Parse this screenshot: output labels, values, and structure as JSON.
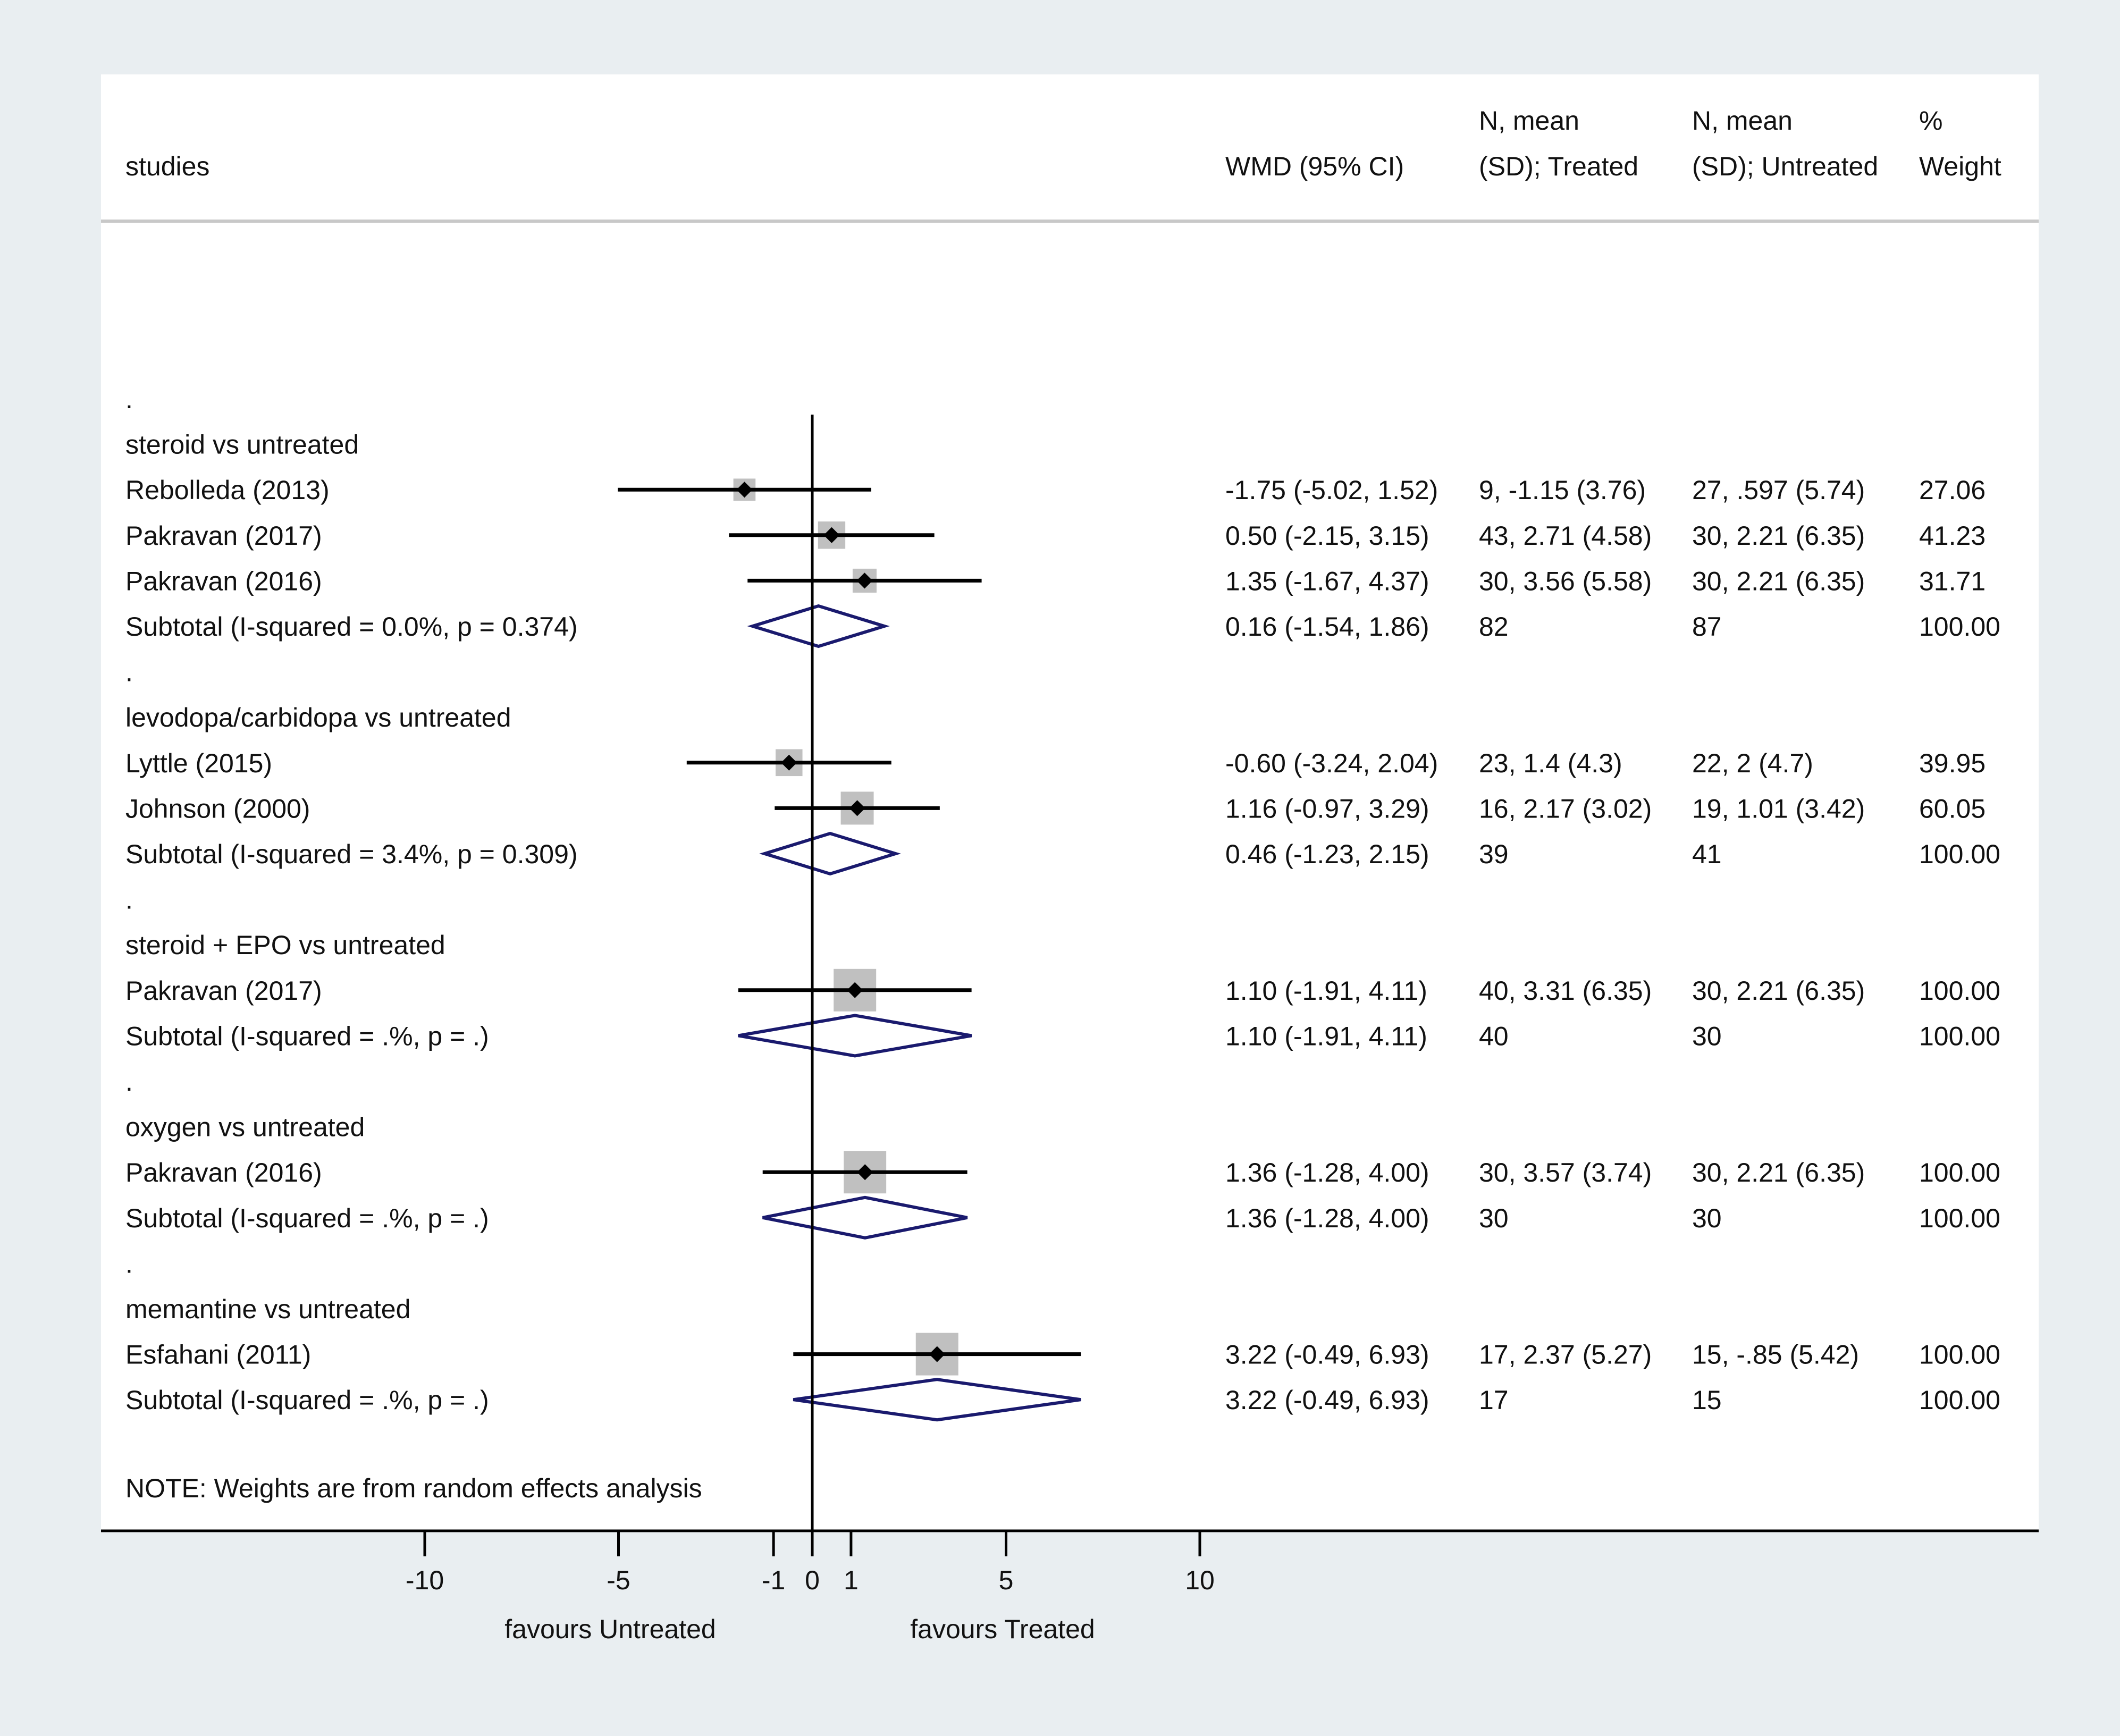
{
  "chart_data": {
    "type": "forest",
    "headers": {
      "studies": "studies",
      "wmd": "WMD (95% CI)",
      "treated_line1": "N, mean",
      "treated_line2": "(SD); Treated",
      "untreated_line1": "N, mean",
      "untreated_line2": "(SD); Untreated",
      "weight_line1": "%",
      "weight_line2": "Weight"
    },
    "rows": [
      {
        "kind": "dot",
        "label": "."
      },
      {
        "kind": "group",
        "label": "steroid vs untreated"
      },
      {
        "kind": "study",
        "label": "Rebolleda (2013)",
        "est": -1.75,
        "lo": -5.02,
        "hi": 1.52,
        "w": 27.06,
        "wmd": "-1.75 (-5.02, 1.52)",
        "treated": "9, -1.15 (3.76)",
        "untreated": "27, .597 (5.74)",
        "weight": "27.06"
      },
      {
        "kind": "study",
        "label": "Pakravan (2017)",
        "est": 0.5,
        "lo": -2.15,
        "hi": 3.15,
        "w": 41.23,
        "wmd": "0.50 (-2.15, 3.15)",
        "treated": "43, 2.71 (4.58)",
        "untreated": "30, 2.21 (6.35)",
        "weight": "41.23"
      },
      {
        "kind": "study",
        "label": "Pakravan (2016)",
        "est": 1.35,
        "lo": -1.67,
        "hi": 4.37,
        "w": 31.71,
        "wmd": "1.35 (-1.67, 4.37)",
        "treated": "30, 3.56 (5.58)",
        "untreated": "30, 2.21 (6.35)",
        "weight": "31.71"
      },
      {
        "kind": "subtotal",
        "label": "Subtotal  (I-squared = 0.0%, p = 0.374)",
        "est": 0.16,
        "lo": -1.54,
        "hi": 1.86,
        "wmd": "0.16 (-1.54, 1.86)",
        "treated": "82",
        "untreated": "87",
        "weight": "100.00"
      },
      {
        "kind": "dot",
        "label": "."
      },
      {
        "kind": "group",
        "label": "levodopa/carbidopa vs untreated"
      },
      {
        "kind": "study",
        "label": "Lyttle (2015)",
        "est": -0.6,
        "lo": -3.24,
        "hi": 2.04,
        "w": 39.95,
        "wmd": "-0.60 (-3.24, 2.04)",
        "treated": "23, 1.4 (4.3)",
        "untreated": "22, 2 (4.7)",
        "weight": "39.95"
      },
      {
        "kind": "study",
        "label": "Johnson (2000)",
        "est": 1.16,
        "lo": -0.97,
        "hi": 3.29,
        "w": 60.05,
        "wmd": "1.16 (-0.97, 3.29)",
        "treated": "16, 2.17 (3.02)",
        "untreated": "19, 1.01 (3.42)",
        "weight": "60.05"
      },
      {
        "kind": "subtotal",
        "label": "Subtotal  (I-squared = 3.4%, p = 0.309)",
        "est": 0.46,
        "lo": -1.23,
        "hi": 2.15,
        "wmd": "0.46 (-1.23, 2.15)",
        "treated": "39",
        "untreated": "41",
        "weight": "100.00"
      },
      {
        "kind": "dot",
        "label": "."
      },
      {
        "kind": "group",
        "label": "steroid + EPO vs untreated"
      },
      {
        "kind": "study",
        "label": "Pakravan (2017)",
        "est": 1.1,
        "lo": -1.91,
        "hi": 4.11,
        "w": 100.0,
        "wmd": "1.10 (-1.91, 4.11)",
        "treated": "40, 3.31 (6.35)",
        "untreated": "30, 2.21 (6.35)",
        "weight": "100.00"
      },
      {
        "kind": "subtotal",
        "label": "Subtotal  (I-squared = .%, p = .)",
        "est": 1.1,
        "lo": -1.91,
        "hi": 4.11,
        "wmd": "1.10 (-1.91, 4.11)",
        "treated": "40",
        "untreated": "30",
        "weight": "100.00"
      },
      {
        "kind": "dot",
        "label": "."
      },
      {
        "kind": "group",
        "label": "oxygen vs untreated"
      },
      {
        "kind": "study",
        "label": "Pakravan (2016)",
        "est": 1.36,
        "lo": -1.28,
        "hi": 4.0,
        "w": 100.0,
        "wmd": "1.36 (-1.28, 4.00)",
        "treated": "30, 3.57 (3.74)",
        "untreated": "30, 2.21 (6.35)",
        "weight": "100.00"
      },
      {
        "kind": "subtotal",
        "label": "Subtotal  (I-squared = .%, p = .)",
        "est": 1.36,
        "lo": -1.28,
        "hi": 4.0,
        "wmd": "1.36 (-1.28, 4.00)",
        "treated": "30",
        "untreated": "30",
        "weight": "100.00"
      },
      {
        "kind": "dot",
        "label": "."
      },
      {
        "kind": "group",
        "label": "memantine vs untreated"
      },
      {
        "kind": "study",
        "label": "Esfahani (2011)",
        "est": 3.22,
        "lo": -0.49,
        "hi": 6.93,
        "w": 100.0,
        "wmd": "3.22 (-0.49, 6.93)",
        "treated": "17, 2.37 (5.27)",
        "untreated": "15, -.85 (5.42)",
        "weight": "100.00"
      },
      {
        "kind": "subtotal",
        "label": "Subtotal  (I-squared = .%, p = .)",
        "est": 3.22,
        "lo": -0.49,
        "hi": 6.93,
        "wmd": "3.22 (-0.49, 6.93)",
        "treated": "17",
        "untreated": "15",
        "weight": "100.00"
      },
      {
        "kind": "note",
        "label": "NOTE: Weights are from random effects analysis"
      }
    ],
    "x_axis": {
      "ticks": [
        -10,
        -5,
        -1,
        0,
        1,
        5,
        10
      ],
      "xlim": [
        -10,
        10
      ],
      "null_line": 0,
      "left_label": "favours Untreated",
      "right_label": "favours Treated"
    },
    "colors": {
      "background": "#e9eef1",
      "panel": "#ffffff",
      "line": "#000000",
      "box": "#c0c0c0",
      "diamond": "#1a1a6e",
      "header_rule": "#c8c8c8"
    }
  }
}
